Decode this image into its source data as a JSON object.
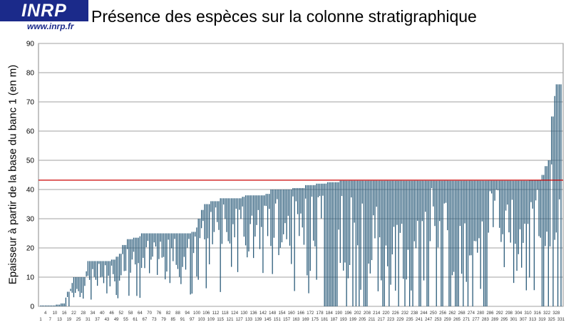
{
  "logo": {
    "name": "INRP",
    "url": "www.inrp.fr"
  },
  "chart_data": {
    "type": "bar",
    "title": "Présence des espèces sur la colonne stratigraphique",
    "ylabel": "Epaisseur à partir de la base du banc 1 (en m)",
    "xlabel": "",
    "ylim": [
      0,
      90
    ],
    "yticks": [
      0,
      10,
      20,
      30,
      40,
      50,
      60,
      70,
      80,
      90
    ],
    "grid": true,
    "x_range": [
      1,
      331
    ],
    "xticks_row1": [
      4,
      10,
      16,
      22,
      28,
      34,
      40,
      46,
      52,
      58,
      64,
      70,
      76,
      82,
      88,
      94,
      100,
      106,
      112,
      118,
      124,
      130,
      136,
      142,
      148,
      154,
      160,
      166,
      172,
      178,
      184,
      190,
      196,
      202,
      208,
      214,
      220,
      226,
      232,
      238,
      244,
      250,
      256,
      262,
      268,
      274,
      280,
      286,
      292,
      298,
      304,
      310,
      316,
      322,
      328
    ],
    "xticks_row2": [
      1,
      7,
      13,
      19,
      25,
      31,
      37,
      43,
      49,
      55,
      61,
      67,
      73,
      79,
      85,
      91,
      97,
      103,
      109,
      115,
      121,
      127,
      133,
      139,
      145,
      151,
      157,
      163,
      169,
      175,
      181,
      187,
      193,
      199,
      205,
      211,
      217,
      223,
      229,
      235,
      241,
      247,
      253,
      259,
      265,
      271,
      277,
      283,
      289,
      295,
      301,
      307,
      313,
      319,
      325,
      331
    ],
    "reference_line": {
      "value": 43.2,
      "color": "#cc0000"
    },
    "bar_color": "#2a5b7a",
    "series": [
      {
        "range_top_profile": [
          [
            1,
            0.3
          ],
          [
            10,
            0.6
          ],
          [
            13,
            1
          ],
          [
            16,
            3
          ],
          [
            17,
            5
          ],
          [
            19,
            6
          ],
          [
            20,
            8
          ],
          [
            21,
            10
          ],
          [
            28,
            10
          ],
          [
            29,
            12
          ],
          [
            30,
            15.5
          ],
          [
            44,
            15.5
          ],
          [
            45,
            16
          ],
          [
            48,
            17
          ],
          [
            50,
            18
          ],
          [
            52,
            21
          ],
          [
            55,
            23
          ],
          [
            59,
            23.5
          ],
          [
            63,
            24
          ],
          [
            64,
            25
          ],
          [
            96,
            25.5
          ],
          [
            99,
            27
          ],
          [
            100,
            30
          ],
          [
            102,
            33
          ],
          [
            104,
            35
          ],
          [
            108,
            36
          ],
          [
            114,
            37
          ],
          [
            128,
            37.5
          ],
          [
            130,
            38
          ],
          [
            143,
            38.5
          ],
          [
            146,
            40
          ],
          [
            160,
            40.5
          ],
          [
            168,
            41.5
          ],
          [
            175,
            42
          ],
          [
            182,
            42.5
          ],
          [
            190,
            43
          ],
          [
            310,
            43.1
          ],
          [
            313,
            43.3
          ],
          [
            318,
            45
          ],
          [
            320,
            48
          ],
          [
            322,
            50
          ],
          [
            324,
            65
          ],
          [
            326,
            72
          ],
          [
            327,
            76
          ],
          [
            331,
            76.8
          ]
        ],
        "bottom_profile": "variable, 0 to range_top; dense cluster of bars reaching 0 between species 180 and 280"
      }
    ]
  }
}
